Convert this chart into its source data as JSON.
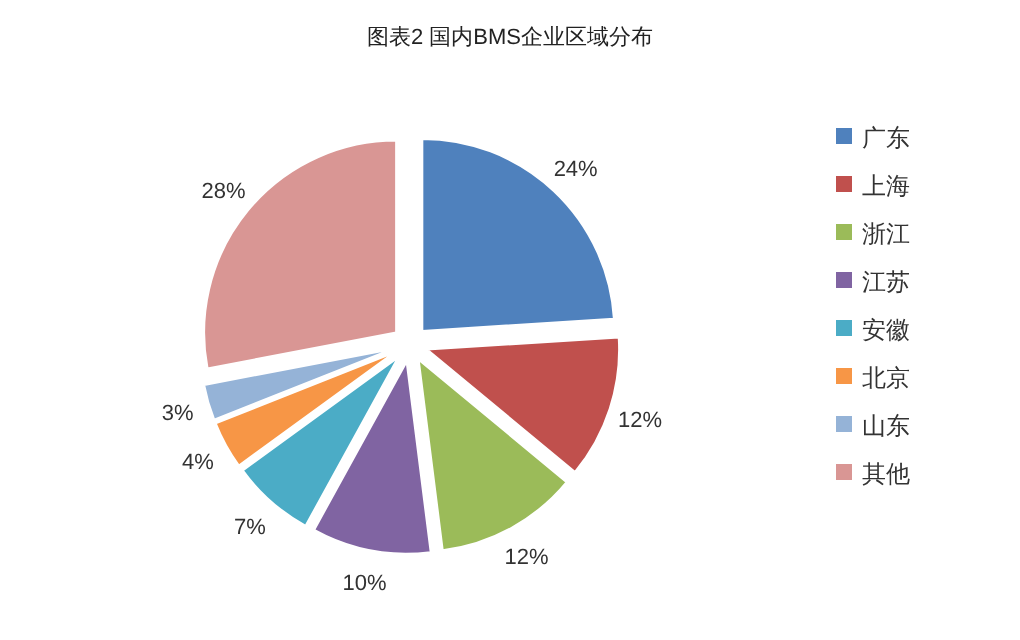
{
  "chart_data": {
    "type": "pie",
    "title": "图表2 国内BMS企业区域分布",
    "categories": [
      "广东",
      "上海",
      "浙江",
      "江苏",
      "安徽",
      "北京",
      "山东",
      "其他"
    ],
    "values": [
      24,
      12,
      12,
      10,
      7,
      4,
      3,
      28
    ],
    "colors": [
      "#4f81bd",
      "#c0504d",
      "#9bbb59",
      "#8064a2",
      "#4bacc6",
      "#f79646",
      "#95b3d7",
      "#d99694"
    ],
    "value_labels": [
      "24%",
      "12%",
      "12%",
      "10%",
      "7%",
      "4%",
      "3%",
      "28%"
    ],
    "legend": "right"
  }
}
